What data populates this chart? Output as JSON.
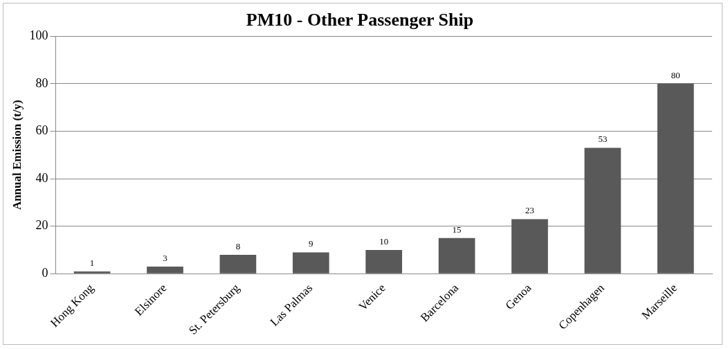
{
  "chart_data": {
    "type": "bar",
    "title": "PM10 - Other Passenger Ship",
    "ylabel": "Annual Emission (t/y)",
    "categories": [
      "Hong Kong",
      "Elsinore",
      "St. Petersburg",
      "Las Palmas",
      "Venice",
      "Barcelona",
      "Genoa",
      "Copenhagen",
      "Marseille"
    ],
    "values": [
      1,
      3,
      8,
      9,
      10,
      15,
      23,
      53,
      80
    ],
    "color": "#595959",
    "ylim": [
      0,
      100
    ],
    "yticks": [
      0,
      20,
      40,
      60,
      80,
      100
    ],
    "grid": "y",
    "data_labels": true,
    "legend": false
  }
}
